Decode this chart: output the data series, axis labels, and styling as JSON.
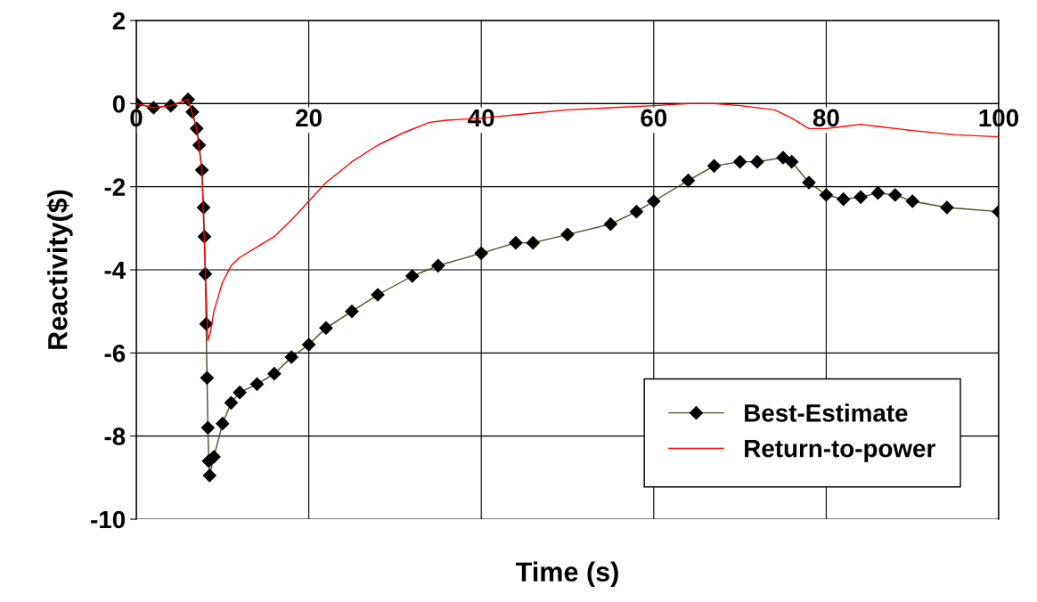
{
  "chart_data": {
    "type": "line",
    "xlabel": "Time (s)",
    "ylabel": "Reactivity($)",
    "xlim": [
      0,
      100
    ],
    "xticks": [
      0,
      20,
      40,
      60,
      80,
      100
    ],
    "ylim": [
      -10,
      2
    ],
    "yticks": [
      -10,
      -8,
      -6,
      -4,
      -2,
      0,
      2
    ],
    "grid": true,
    "legend": "bottom right",
    "series": [
      {
        "name": "Best-Estimate",
        "color": "#000000",
        "marker": "diamond",
        "x": [
          0,
          2,
          4,
          6,
          6.5,
          7,
          7.3,
          7.6,
          7.8,
          7.9,
          8.0,
          8.1,
          8.2,
          8.3,
          8.4,
          8.5,
          9,
          10,
          11,
          12,
          14,
          16,
          18,
          20,
          22,
          25,
          28,
          32,
          35,
          40,
          44,
          46,
          50,
          55,
          58,
          60,
          64,
          67,
          70,
          72,
          75,
          76,
          78,
          80,
          82,
          84,
          86,
          88,
          90,
          94,
          100
        ],
        "values": [
          0,
          -0.1,
          -0.05,
          0.1,
          -0.2,
          -0.6,
          -1.0,
          -1.6,
          -2.5,
          -3.2,
          -4.1,
          -5.3,
          -6.6,
          -7.8,
          -8.6,
          -8.95,
          -8.5,
          -7.7,
          -7.2,
          -6.95,
          -6.75,
          -6.5,
          -6.1,
          -5.8,
          -5.4,
          -5.0,
          -4.6,
          -4.15,
          -3.9,
          -3.6,
          -3.35,
          -3.35,
          -3.15,
          -2.9,
          -2.6,
          -2.35,
          -1.85,
          -1.5,
          -1.4,
          -1.4,
          -1.3,
          -1.4,
          -1.9,
          -2.2,
          -2.3,
          -2.25,
          -2.15,
          -2.2,
          -2.35,
          -2.5,
          -2.6
        ]
      },
      {
        "name": "Return-to-power",
        "color": "#ff0000",
        "marker": "none",
        "x": [
          0,
          2,
          4,
          6,
          7,
          7.6,
          8.0,
          8.3,
          8.6,
          9,
          10,
          11,
          12,
          14,
          16,
          18,
          20,
          22,
          25,
          28,
          31,
          34,
          36,
          40,
          45,
          50,
          55,
          60,
          64,
          67,
          70,
          74,
          76,
          78,
          80,
          82,
          84,
          86,
          90,
          95,
          100
        ],
        "values": [
          0,
          -0.1,
          -0.05,
          0.1,
          -0.6,
          -1.6,
          -4.0,
          -5.7,
          -5.5,
          -5.0,
          -4.3,
          -3.9,
          -3.7,
          -3.45,
          -3.2,
          -2.8,
          -2.35,
          -1.9,
          -1.4,
          -1.0,
          -0.7,
          -0.45,
          -0.4,
          -0.35,
          -0.25,
          -0.15,
          -0.1,
          -0.05,
          0.0,
          0.0,
          -0.05,
          -0.15,
          -0.35,
          -0.6,
          -0.6,
          -0.55,
          -0.5,
          -0.55,
          -0.65,
          -0.75,
          -0.8
        ]
      }
    ]
  }
}
